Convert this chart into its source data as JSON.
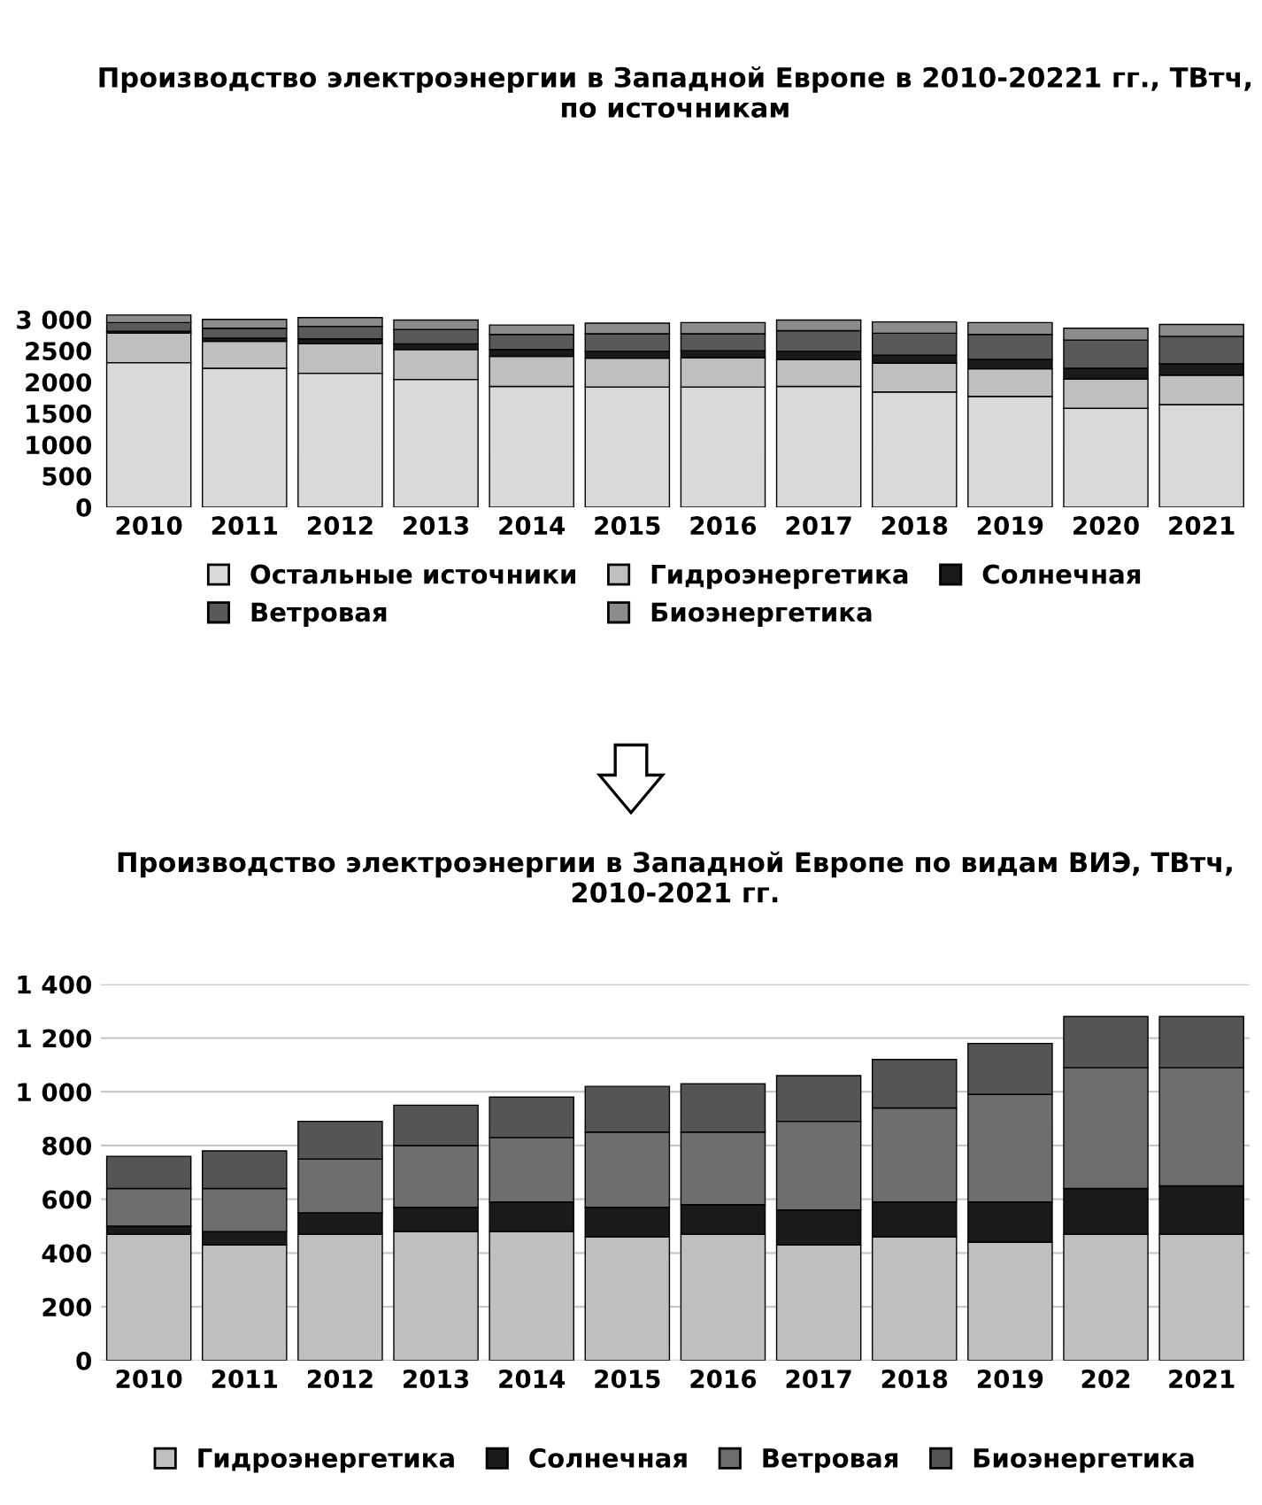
{
  "chart_data": [
    {
      "type": "bar",
      "stacked": true,
      "title": "Производство электроэнергии в Западной Европе в 2010-20221 гг., ТВтч, по источникам",
      "categories": [
        "2010",
        "2011",
        "2012",
        "2013",
        "2014",
        "2015",
        "2016",
        "2017",
        "2018",
        "2019",
        "2020",
        "2021"
      ],
      "ylim": [
        0,
        3150
      ],
      "yticks": [
        0,
        500,
        1000,
        1500,
        2000,
        2500,
        {
          "value": 3000,
          "label": "3 000"
        }
      ],
      "grid": false,
      "legend": "bottom",
      "series": [
        {
          "name": "Остальные источники",
          "color": "#d9d9d9",
          "values": [
            2310,
            2220,
            2140,
            2040,
            1930,
            1920,
            1920,
            1930,
            1840,
            1770,
            1580,
            1640
          ]
        },
        {
          "name": "Гидроэнергетика",
          "color": "#bfbfbf",
          "values": [
            470,
            430,
            470,
            480,
            480,
            460,
            470,
            430,
            460,
            440,
            470,
            470
          ]
        },
        {
          "name": "Солнечная",
          "color": "#1a1a1a",
          "values": [
            30,
            50,
            80,
            90,
            110,
            110,
            110,
            130,
            130,
            150,
            170,
            180
          ]
        },
        {
          "name": "Ветровая",
          "color": "#595959",
          "values": [
            140,
            160,
            200,
            230,
            240,
            280,
            270,
            330,
            350,
            400,
            450,
            440
          ]
        },
        {
          "name": "Биоэнергетика",
          "color": "#8c8c8c",
          "values": [
            120,
            140,
            140,
            150,
            150,
            170,
            180,
            170,
            180,
            190,
            190,
            190
          ]
        }
      ]
    },
    {
      "type": "bar",
      "stacked": true,
      "title": "Производство электроэнергии в Западной Европе по видам ВИЭ, ТВтч, 2010-2021 гг.",
      "categories": [
        "2010",
        "2011",
        "2012",
        "2013",
        "2014",
        "2015",
        "2016",
        "2017",
        "2018",
        "2019",
        "202",
        "2021"
      ],
      "ylim": [
        0,
        1400
      ],
      "yticks": [
        0,
        200,
        400,
        600,
        800,
        {
          "value": 1000,
          "label": "1 000"
        },
        {
          "value": 1200,
          "label": "1 200"
        },
        {
          "value": 1400,
          "label": "1 400"
        }
      ],
      "grid": "y",
      "legend": "bottom",
      "series": [
        {
          "name": "Гидроэнергетика",
          "color": "#bfbfbf",
          "values": [
            470,
            430,
            470,
            480,
            480,
            460,
            470,
            430,
            460,
            440,
            470,
            470
          ]
        },
        {
          "name": "Солнечная",
          "color": "#1a1a1a",
          "values": [
            30,
            50,
            80,
            90,
            110,
            110,
            110,
            130,
            130,
            150,
            170,
            180
          ]
        },
        {
          "name": "Ветровая",
          "color": "#6e6e6e",
          "values": [
            140,
            160,
            200,
            230,
            240,
            280,
            270,
            330,
            350,
            400,
            450,
            440
          ]
        },
        {
          "name": "Биоэнергетика",
          "color": "#555555",
          "values": [
            120,
            140,
            140,
            150,
            150,
            170,
            180,
            170,
            180,
            190,
            190,
            190
          ]
        }
      ]
    }
  ]
}
